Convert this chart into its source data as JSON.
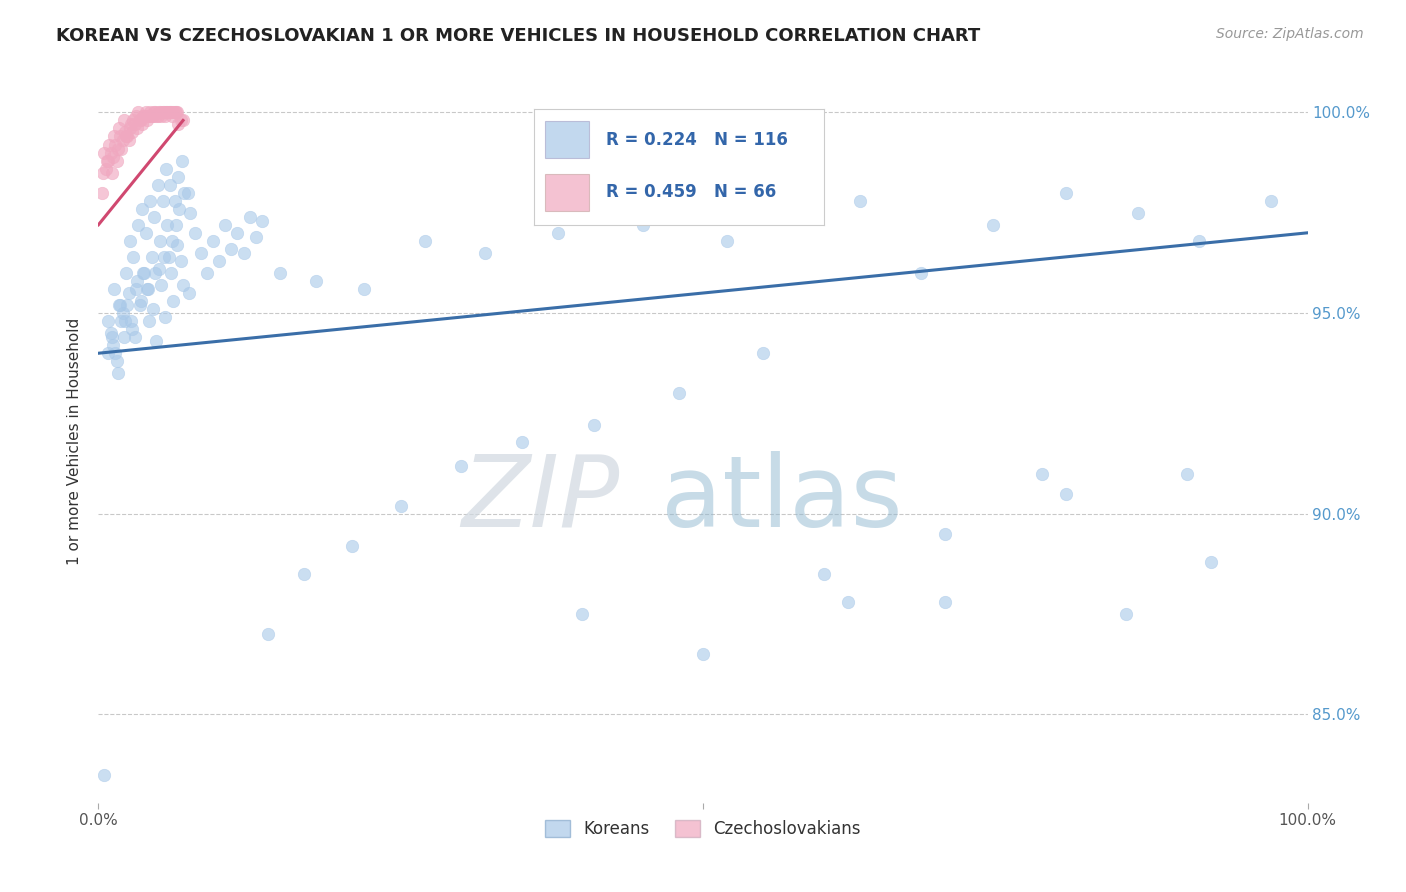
{
  "title": "KOREAN VS CZECHOSLOVAKIAN 1 OR MORE VEHICLES IN HOUSEHOLD CORRELATION CHART",
  "source": "Source: ZipAtlas.com",
  "ylabel": "1 or more Vehicles in Household",
  "korean_color": "#a8c8e8",
  "czech_color": "#f0a8c0",
  "korean_line_color": "#3a6ea8",
  "czech_line_color": "#d04870",
  "legend_korean_R": 0.224,
  "legend_korean_N": 116,
  "legend_czech_R": 0.459,
  "legend_czech_N": 66,
  "watermark_zip": "ZIP",
  "watermark_atlas": "atlas",
  "xlim": [
    0.0,
    1.0
  ],
  "ylim": [
    0.828,
    1.008
  ],
  "ytick_vals": [
    0.85,
    0.9,
    0.95,
    1.0
  ],
  "ytick_labels": [
    "85.0%",
    "90.0%",
    "95.0%",
    "100.0%"
  ],
  "korean_x": [
    0.005,
    0.008,
    0.01,
    0.012,
    0.015,
    0.018,
    0.02,
    0.022,
    0.025,
    0.028,
    0.03,
    0.032,
    0.035,
    0.038,
    0.04,
    0.042,
    0.045,
    0.048,
    0.05,
    0.052,
    0.055,
    0.058,
    0.06,
    0.062,
    0.065,
    0.068,
    0.07,
    0.075,
    0.08,
    0.085,
    0.09,
    0.095,
    0.1,
    0.105,
    0.11,
    0.115,
    0.12,
    0.125,
    0.13,
    0.135,
    0.014,
    0.016,
    0.019,
    0.021,
    0.024,
    0.027,
    0.031,
    0.034,
    0.037,
    0.041,
    0.044,
    0.047,
    0.051,
    0.054,
    0.057,
    0.061,
    0.064,
    0.067,
    0.071,
    0.076,
    0.008,
    0.011,
    0.013,
    0.017,
    0.023,
    0.026,
    0.029,
    0.033,
    0.036,
    0.039,
    0.043,
    0.046,
    0.049,
    0.053,
    0.056,
    0.059,
    0.063,
    0.066,
    0.069,
    0.074,
    0.15,
    0.18,
    0.22,
    0.27,
    0.32,
    0.38,
    0.45,
    0.52,
    0.58,
    0.63,
    0.68,
    0.74,
    0.8,
    0.86,
    0.91,
    0.97,
    0.14,
    0.17,
    0.21,
    0.25,
    0.3,
    0.35,
    0.41,
    0.48,
    0.55,
    0.62,
    0.7,
    0.78,
    0.85,
    0.92,
    0.5,
    0.4,
    0.6,
    0.7,
    0.8,
    0.9
  ],
  "korean_y": [
    0.835,
    0.94,
    0.945,
    0.942,
    0.938,
    0.952,
    0.95,
    0.948,
    0.955,
    0.946,
    0.944,
    0.958,
    0.953,
    0.96,
    0.956,
    0.948,
    0.951,
    0.943,
    0.961,
    0.957,
    0.949,
    0.964,
    0.96,
    0.953,
    0.967,
    0.963,
    0.957,
    0.955,
    0.97,
    0.965,
    0.96,
    0.968,
    0.963,
    0.972,
    0.966,
    0.97,
    0.965,
    0.974,
    0.969,
    0.973,
    0.94,
    0.935,
    0.948,
    0.944,
    0.952,
    0.948,
    0.956,
    0.952,
    0.96,
    0.956,
    0.964,
    0.96,
    0.968,
    0.964,
    0.972,
    0.968,
    0.972,
    0.976,
    0.98,
    0.975,
    0.948,
    0.944,
    0.956,
    0.952,
    0.96,
    0.968,
    0.964,
    0.972,
    0.976,
    0.97,
    0.978,
    0.974,
    0.982,
    0.978,
    0.986,
    0.982,
    0.978,
    0.984,
    0.988,
    0.98,
    0.96,
    0.958,
    0.956,
    0.968,
    0.965,
    0.97,
    0.972,
    0.968,
    0.975,
    0.978,
    0.96,
    0.972,
    0.98,
    0.975,
    0.968,
    0.978,
    0.87,
    0.885,
    0.892,
    0.902,
    0.912,
    0.918,
    0.922,
    0.93,
    0.94,
    0.878,
    0.895,
    0.91,
    0.875,
    0.888,
    0.865,
    0.875,
    0.885,
    0.878,
    0.905,
    0.91
  ],
  "czech_x": [
    0.003,
    0.005,
    0.007,
    0.009,
    0.011,
    0.013,
    0.015,
    0.017,
    0.019,
    0.021,
    0.023,
    0.025,
    0.027,
    0.029,
    0.031,
    0.033,
    0.035,
    0.037,
    0.039,
    0.041,
    0.043,
    0.045,
    0.047,
    0.049,
    0.051,
    0.053,
    0.055,
    0.057,
    0.059,
    0.061,
    0.063,
    0.065,
    0.004,
    0.006,
    0.008,
    0.01,
    0.012,
    0.014,
    0.016,
    0.018,
    0.02,
    0.022,
    0.024,
    0.026,
    0.028,
    0.03,
    0.032,
    0.034,
    0.036,
    0.038,
    0.04,
    0.042,
    0.044,
    0.046,
    0.048,
    0.05,
    0.052,
    0.054,
    0.056,
    0.058,
    0.06,
    0.062,
    0.064,
    0.066,
    0.068,
    0.07
  ],
  "czech_y": [
    0.98,
    0.99,
    0.988,
    0.992,
    0.985,
    0.994,
    0.988,
    0.996,
    0.991,
    0.998,
    0.994,
    0.993,
    0.997,
    0.998,
    0.999,
    1.0,
    0.998,
    0.999,
    1.0,
    0.999,
    1.0,
    0.999,
    1.0,
    0.999,
    1.0,
    1.0,
    0.999,
    1.0,
    1.0,
    0.999,
    1.0,
    1.0,
    0.985,
    0.986,
    0.988,
    0.99,
    0.989,
    0.992,
    0.991,
    0.994,
    0.993,
    0.995,
    0.994,
    0.996,
    0.995,
    0.997,
    0.996,
    0.998,
    0.997,
    0.999,
    0.998,
    0.999,
    0.999,
    1.0,
    0.999,
    1.0,
    0.999,
    1.0,
    1.0,
    1.0,
    1.0,
    1.0,
    1.0,
    0.997,
    0.998,
    0.998
  ],
  "korean_line_x": [
    0.0,
    1.0
  ],
  "korean_line_y": [
    0.94,
    0.97
  ],
  "czech_line_x": [
    0.0,
    0.07
  ],
  "czech_line_y": [
    0.972,
    0.998
  ]
}
